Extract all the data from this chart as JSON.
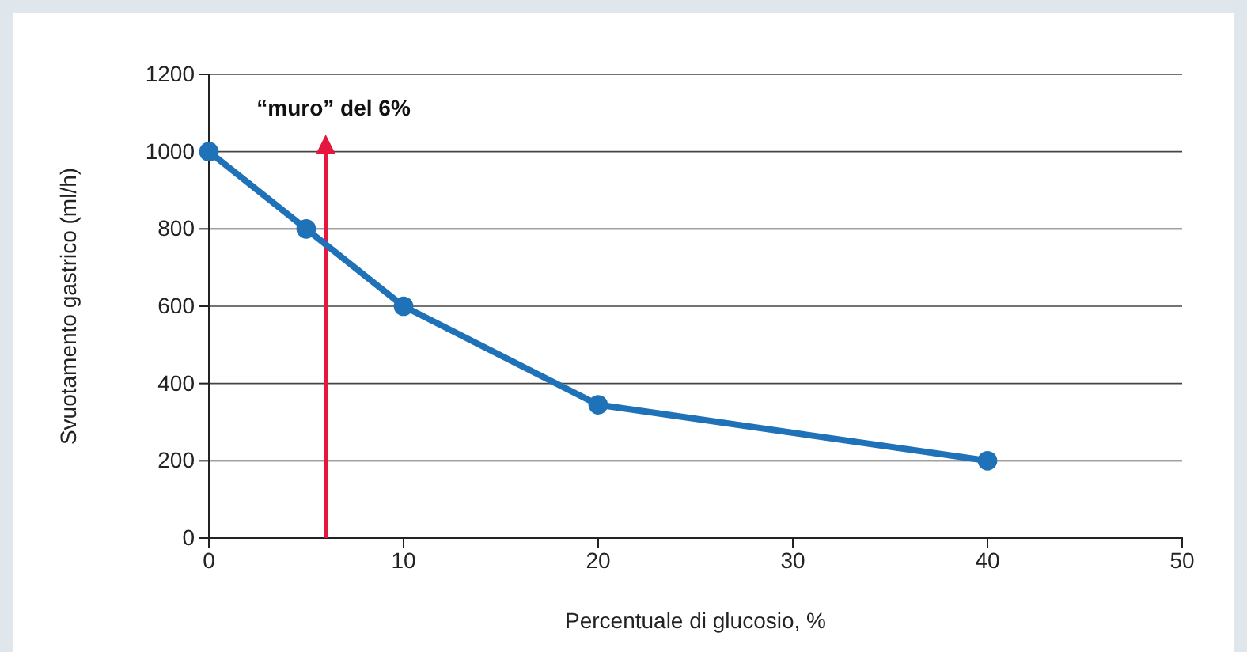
{
  "chart_data": {
    "type": "line",
    "xlabel": "Percentuale di glucosio, %",
    "ylabel": "Svuotamento gastrico (ml/h)",
    "x": [
      0,
      5,
      10,
      20,
      40
    ],
    "series": [
      {
        "color": "#1f72b8",
        "values": [
          1000,
          800,
          600,
          345,
          200
        ]
      }
    ],
    "xlim": [
      0,
      50
    ],
    "xticks": [
      0,
      10,
      20,
      30,
      40,
      50
    ],
    "ylim": [
      0,
      1200
    ],
    "yticks": [
      0,
      200,
      400,
      600,
      800,
      1000,
      1200
    ],
    "grid": "y",
    "marker": "circle",
    "line_style": "solid",
    "ref_lines": [
      {
        "axis": "x",
        "value": 6,
        "label": "“muro” del 6%",
        "color": "#e5173f"
      }
    ]
  }
}
